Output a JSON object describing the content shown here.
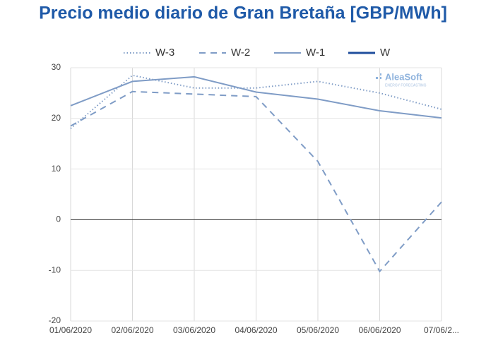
{
  "chart_data": {
    "type": "line",
    "title": "Precio medio diario de Gran Bretaña [GBP/MWh]",
    "watermark": "AleaSoft",
    "watermark_subtitle": "ENERGY FORECASTING",
    "categories": [
      "01/06/2020",
      "02/06/2020",
      "03/06/2020",
      "04/06/2020",
      "05/06/2020",
      "06/06/2020",
      "07/06/2..."
    ],
    "series": [
      {
        "name": "W-3",
        "color": "#7f9cc6",
        "line_style": "dotted",
        "values": [
          18,
          28.5,
          26,
          26,
          27.3,
          25,
          21.8
        ]
      },
      {
        "name": "W-2",
        "color": "#7f9cc6",
        "line_style": "dashed",
        "values": [
          18.5,
          25.3,
          24.8,
          24.3,
          11.5,
          -10.2,
          3.5
        ]
      },
      {
        "name": "W-1",
        "color": "#7f9cc6",
        "line_style": "solid",
        "values": [
          22.5,
          27.3,
          28.2,
          25.2,
          23.8,
          21.5,
          20.1
        ]
      },
      {
        "name": "W",
        "color": "#1f4e9c",
        "line_style": "solid",
        "values": [
          null,
          null,
          null,
          null,
          null,
          null,
          null
        ]
      }
    ],
    "ylim": [
      -20,
      30
    ],
    "yticks": [
      30,
      20,
      10,
      0,
      -10,
      -20
    ],
    "grid": true,
    "legend": "top"
  }
}
